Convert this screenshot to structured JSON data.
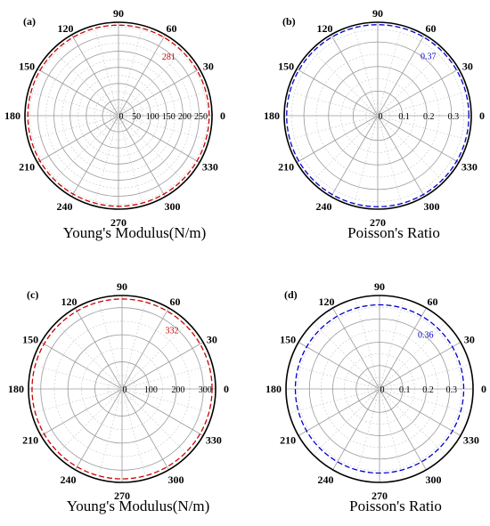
{
  "chart_data": [
    {
      "panel": "(a)",
      "type": "polar",
      "caption": "Young's Modulus(N/m)",
      "angle_ticks": [
        "0",
        "30",
        "60",
        "90",
        "120",
        "150",
        "180",
        "210",
        "240",
        "270",
        "300",
        "330"
      ],
      "r_ticks": [
        0,
        50,
        100,
        150,
        200,
        250
      ],
      "r_tick_labels": [
        "0",
        "50",
        "100",
        "150",
        "200",
        "250"
      ],
      "rmax": 290,
      "series": [
        {
          "values": [
            281,
            281,
            281,
            281,
            281,
            281,
            281,
            281,
            281,
            281,
            281,
            281,
            281
          ],
          "theta": [
            0,
            30,
            60,
            90,
            120,
            150,
            180,
            210,
            240,
            270,
            300,
            330,
            360
          ],
          "color": "#cc0000"
        }
      ],
      "value_label": "281",
      "value_label_color": "#cc0000"
    },
    {
      "panel": "(b)",
      "type": "polar",
      "caption": "Poisson's Ratio",
      "angle_ticks": [
        "0",
        "30",
        "60",
        "90",
        "120",
        "150",
        "180",
        "210",
        "240",
        "270",
        "300",
        "330"
      ],
      "r_ticks": [
        0,
        0.1,
        0.2,
        0.3
      ],
      "r_tick_labels": [
        "0",
        "0.1",
        "0.2",
        "0.3"
      ],
      "rmax": 0.38,
      "series": [
        {
          "values": [
            0.37,
            0.37,
            0.37,
            0.37,
            0.37,
            0.37,
            0.37,
            0.37,
            0.37,
            0.37,
            0.37,
            0.37,
            0.37
          ],
          "theta": [
            0,
            30,
            60,
            90,
            120,
            150,
            180,
            210,
            240,
            270,
            300,
            330,
            360
          ],
          "color": "#0000cc"
        }
      ],
      "value_label": "0.37",
      "value_label_color": "#0000cc"
    },
    {
      "panel": "(c)",
      "type": "polar",
      "caption": "Young's Modulus(N/m)",
      "angle_ticks": [
        "0",
        "30",
        "60",
        "90",
        "120",
        "150",
        "180",
        "210",
        "240",
        "270",
        "300",
        "330"
      ],
      "r_ticks": [
        0,
        100,
        200,
        300
      ],
      "r_tick_labels": [
        "0",
        "100",
        "200",
        "300"
      ],
      "rmax": 345,
      "series": [
        {
          "values": [
            332,
            332,
            332,
            332,
            332,
            332,
            332,
            332,
            332,
            332,
            332,
            332,
            332
          ],
          "theta": [
            0,
            30,
            60,
            90,
            120,
            150,
            180,
            210,
            240,
            270,
            300,
            330,
            360
          ],
          "color": "#cc0000"
        }
      ],
      "value_label": "332",
      "value_label_color": "#cc0000"
    },
    {
      "panel": "(d)",
      "type": "polar",
      "caption": "Poisson's Ratio",
      "angle_ticks": [
        "0",
        "30",
        "60",
        "90",
        "120",
        "150",
        "180",
        "210",
        "240",
        "270",
        "300",
        "330"
      ],
      "r_ticks": [
        0,
        0.1,
        0.2,
        0.3
      ],
      "r_tick_labels": [
        "0",
        "0.1",
        "0.2",
        "0.3"
      ],
      "rmax": 0.4,
      "series": [
        {
          "values": [
            0.36,
            0.36,
            0.36,
            0.36,
            0.36,
            0.36,
            0.36,
            0.36,
            0.36,
            0.36,
            0.36,
            0.36,
            0.36
          ],
          "theta": [
            0,
            30,
            60,
            90,
            120,
            150,
            180,
            210,
            240,
            270,
            300,
            330,
            360
          ],
          "color": "#0000cc"
        }
      ],
      "value_label": "0.36",
      "value_label_color": "#0000cc"
    }
  ]
}
